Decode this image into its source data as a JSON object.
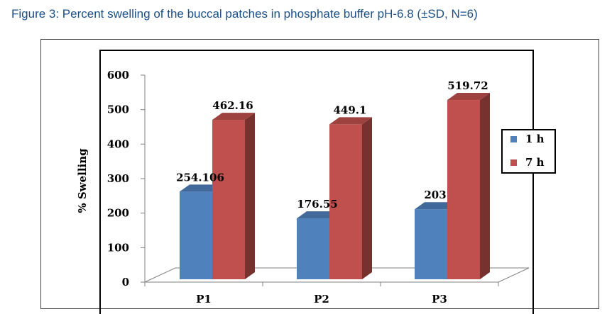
{
  "caption": "Figure 3: Percent swelling of the buccal patches in phosphate buffer pH-6.8 (±SD, N=6)",
  "chart_data": {
    "type": "bar",
    "categories": [
      "P1",
      "P2",
      "P3"
    ],
    "series": [
      {
        "name": "1 h",
        "values": [
          254.106,
          176.55,
          203
        ],
        "labels": [
          "254.106",
          "176.55",
          "203"
        ],
        "color": "#4f81bd"
      },
      {
        "name": "7 h",
        "values": [
          462.16,
          449.1,
          519.72
        ],
        "labels": [
          "462.16",
          "449.1",
          "519.72"
        ],
        "color": "#c0504d"
      }
    ],
    "ylabel": "% Swelling",
    "ylim": [
      0,
      600
    ],
    "yticks": [
      "0",
      "100",
      "200",
      "300",
      "400",
      "500",
      "600"
    ],
    "legend_position": "right",
    "grid": false
  }
}
